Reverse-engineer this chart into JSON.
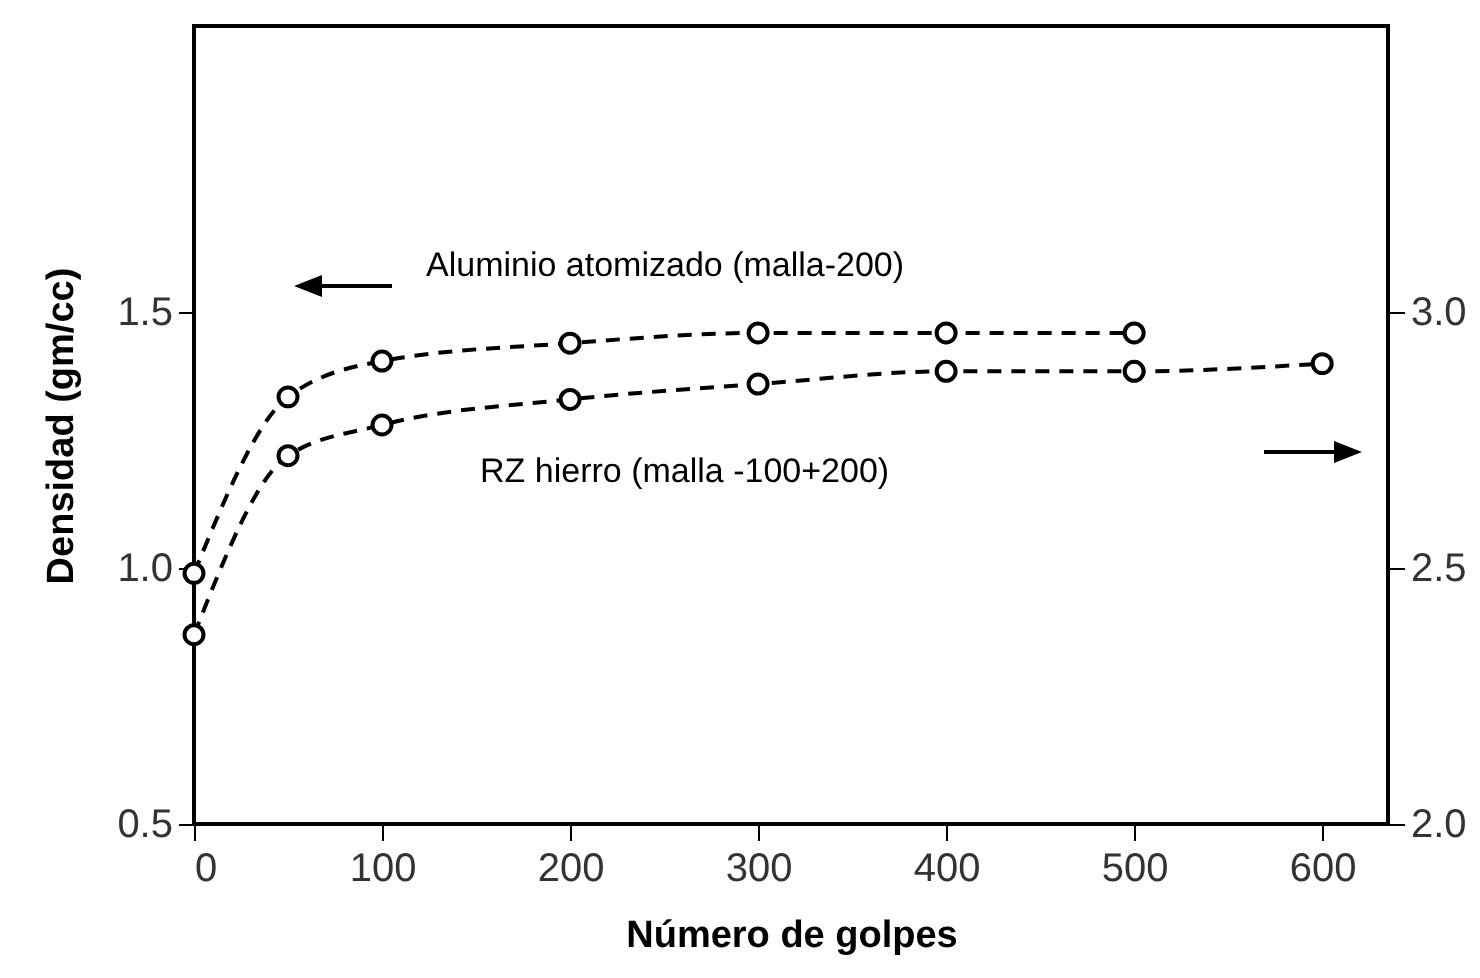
{
  "chart_data": {
    "type": "line",
    "xlabel": "Número de golpes",
    "ylabel": "Densidad (gm/cc)",
    "xlim": [
      0,
      635
    ],
    "xticks": [
      0,
      100,
      200,
      300,
      400,
      500,
      600
    ],
    "ylim": [
      0.5,
      2.06
    ],
    "yticks": [
      0.5,
      {
        "value": 1,
        "label": "1.0"
      },
      1.5
    ],
    "y2lim": [
      2.0,
      3.56
    ],
    "y2ticks": [
      {
        "value": 2,
        "label": "2.0"
      },
      2.5,
      {
        "value": 3,
        "label": "3.0"
      }
    ],
    "grid": false,
    "marker": "circle",
    "line_style": "dashed",
    "annotations": [
      "Aluminio atomizado (malla-200)",
      "RZ hierro (malla -100+200)"
    ],
    "series": [
      {
        "color": "#000000",
        "x": [
          0,
          50,
          100,
          200,
          300,
          400,
          500
        ],
        "values": [
          0.99,
          1.335,
          1.405,
          1.44,
          1.46,
          1.46,
          1.46
        ]
      },
      {
        "color": "#000000",
        "axis": "y2",
        "x": [
          0,
          50,
          100,
          200,
          300,
          400,
          500,
          600
        ],
        "values": [
          2.37,
          2.72,
          2.78,
          2.83,
          2.86,
          2.885,
          2.885,
          2.9
        ]
      }
    ]
  }
}
